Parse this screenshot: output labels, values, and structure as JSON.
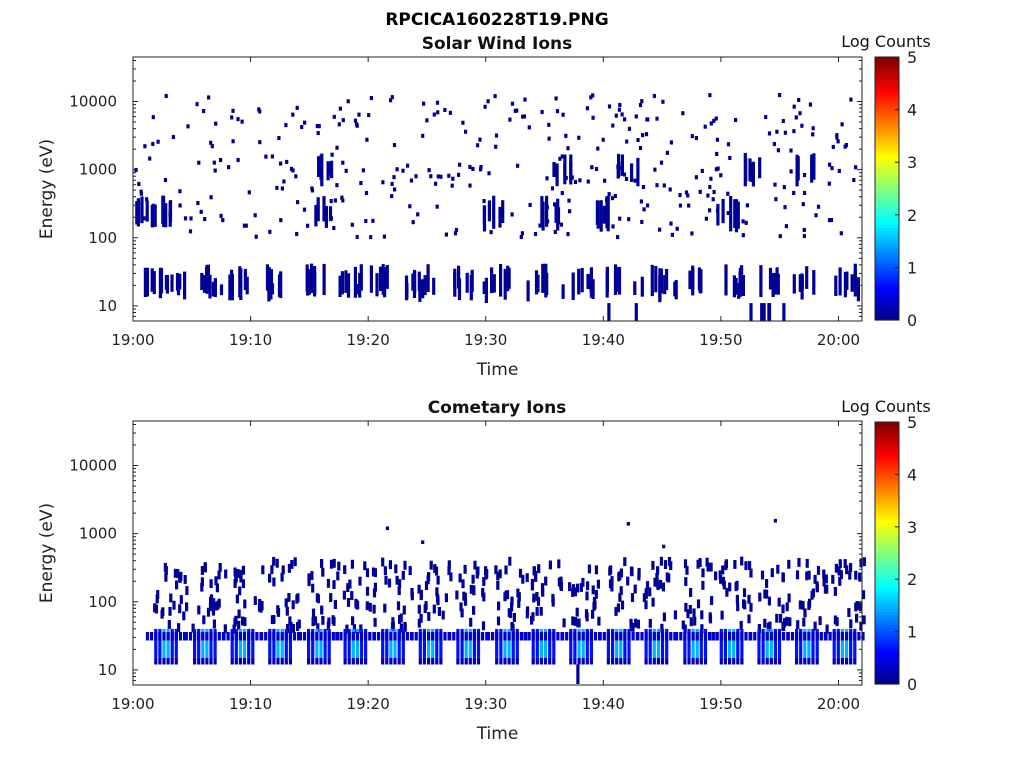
{
  "figure": {
    "title": "RPCICA160228T19.PNG"
  },
  "colorbar": {
    "label": "Log Counts",
    "ticks": [
      "0",
      "1",
      "2",
      "3",
      "4",
      "5"
    ],
    "range": [
      0,
      5
    ],
    "colormap": "jet"
  },
  "chart_data": [
    {
      "type": "heatmap",
      "title": "Solar Wind Ions",
      "xlabel": "Time",
      "ylabel": "Energy (eV)",
      "y_scale": "log",
      "ylim": [
        6,
        45000
      ],
      "xlim": [
        "19:00",
        "20:02"
      ],
      "x_tick_labels": [
        "19:00",
        "19:10",
        "19:20",
        "19:30",
        "19:40",
        "19:50",
        "20:00"
      ],
      "y_tick_labels": [
        "10",
        "100",
        "1000",
        "10000"
      ],
      "bands": [
        {
          "energy_eV": [
            15,
            35
          ],
          "log_counts": 0.1,
          "times_min": [
            1.5,
            3.5,
            6.0,
            9.0,
            12.0,
            15.5,
            18.5,
            21.0,
            24.5,
            28.0,
            31.0,
            34.5,
            38.0,
            41.0,
            44.5,
            48.0,
            51.0,
            54.0,
            57.0,
            60.5
          ]
        },
        {
          "energy_eV": [
            150,
            350
          ],
          "log_counts": 0.1,
          "times_min": [
            1.0,
            2.5,
            16.0,
            30.5,
            35.5,
            40.0,
            50.5
          ]
        },
        {
          "energy_eV": [
            700,
            1500
          ],
          "log_counts": 0.1,
          "times_min": [
            16.0,
            36.5,
            42.0,
            52.5,
            57.0
          ]
        }
      ],
      "scatter_counts": 0.05
    },
    {
      "type": "heatmap",
      "title": "Cometary Ions",
      "xlabel": "Time",
      "ylabel": "Energy (eV)",
      "y_scale": "log",
      "ylim": [
        6,
        45000
      ],
      "xlim": [
        "19:00",
        "20:02"
      ],
      "x_tick_labels": [
        "19:00",
        "19:10",
        "19:20",
        "19:30",
        "19:40",
        "19:50",
        "20:00"
      ],
      "y_tick_labels": [
        "10",
        "100",
        "1000",
        "10000"
      ],
      "bursts_min": [
        2.5,
        5.8,
        9.0,
        12.2,
        15.5,
        18.6,
        21.8,
        25.0,
        28.2,
        31.5,
        34.6,
        37.8,
        41.0,
        44.2,
        47.5,
        50.6,
        53.8,
        57.0,
        60.2
      ],
      "burst_profile": {
        "core_energy_eV": [
          15,
          40
        ],
        "core_log_counts": 1.5,
        "tail_energy_eV": [
          40,
          400
        ],
        "tail_log_counts": 0.1
      },
      "isolated_points": [
        {
          "time_min": 21.5,
          "energy_eV": 1200
        },
        {
          "time_min": 24.5,
          "energy_eV": 750
        },
        {
          "time_min": 42.0,
          "energy_eV": 1400
        },
        {
          "time_min": 45.0,
          "energy_eV": 650
        },
        {
          "time_min": 54.5,
          "energy_eV": 1550
        }
      ]
    }
  ]
}
